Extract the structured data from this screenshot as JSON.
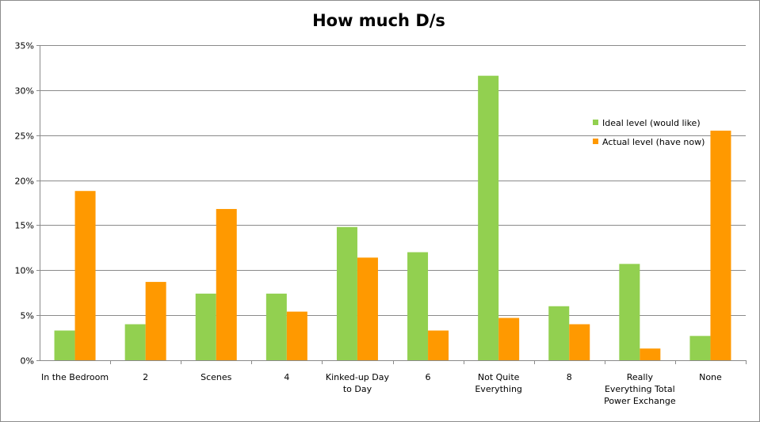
{
  "chart_data": {
    "type": "bar",
    "title": "How much D/s",
    "xlabel": "",
    "ylabel": "",
    "ylim": [
      0,
      35
    ],
    "y_ticks": [
      "0%",
      "5%",
      "10%",
      "15%",
      "20%",
      "25%",
      "30%",
      "35%"
    ],
    "y_tick_values": [
      0,
      5,
      10,
      15,
      20,
      25,
      30,
      35
    ],
    "grid": true,
    "legend_position": "right",
    "categories": [
      [
        "In the Bedroom"
      ],
      [
        "2"
      ],
      [
        "Scenes"
      ],
      [
        "4"
      ],
      [
        "Kinked-up Day",
        "to Day"
      ],
      [
        "6"
      ],
      [
        "Not Quite",
        "Everything"
      ],
      [
        "8"
      ],
      [
        "Really",
        "Everything Total",
        "Power Exchange"
      ],
      [
        "None"
      ]
    ],
    "series": [
      {
        "name": "Ideal level (would like)",
        "color": "#92d050",
        "values": [
          3.3,
          4.0,
          7.4,
          7.4,
          14.8,
          12.0,
          31.6,
          6.0,
          10.7,
          2.7
        ]
      },
      {
        "name": "Actual level (have now)",
        "color": "#ff9900",
        "values": [
          18.8,
          8.7,
          16.8,
          5.4,
          11.4,
          3.3,
          4.7,
          4.0,
          1.3,
          25.5
        ]
      }
    ]
  }
}
